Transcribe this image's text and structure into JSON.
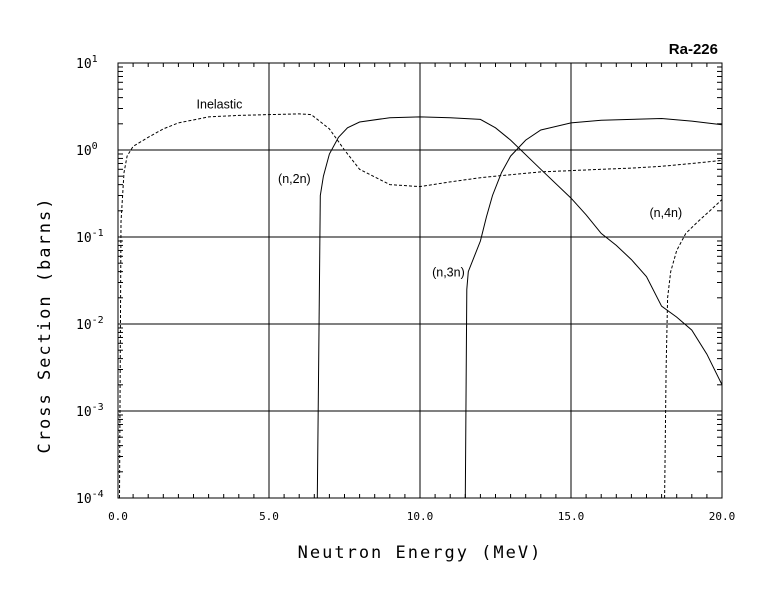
{
  "chart_data": {
    "type": "line",
    "title": "Ra-226",
    "xlabel": "Neutron Energy (MeV)",
    "ylabel": "Cross Section (barns)",
    "xlim": [
      0,
      20
    ],
    "ylim": [
      0.0001,
      10
    ],
    "yscale": "log",
    "grid": true,
    "x_ticks": [
      {
        "value": 0,
        "label": "0.0"
      },
      {
        "value": 5,
        "label": "5.0"
      },
      {
        "value": 10,
        "label": "10.0"
      },
      {
        "value": 15,
        "label": "15.0"
      },
      {
        "value": 20,
        "label": "20.0"
      }
    ],
    "y_ticks": [
      {
        "exp": -4,
        "base": "10",
        "sup": "-4"
      },
      {
        "exp": -3,
        "base": "10",
        "sup": "-3"
      },
      {
        "exp": -2,
        "base": "10",
        "sup": "-2"
      },
      {
        "exp": -1,
        "base": "10",
        "sup": "-1"
      },
      {
        "exp": 0,
        "base": "10",
        "sup": "0"
      },
      {
        "exp": 1,
        "base": "10",
        "sup": "1"
      }
    ],
    "series": [
      {
        "name": "Inelastic",
        "style": "dashed",
        "x": [
          0.05,
          0.1,
          0.2,
          0.3,
          0.5,
          1.0,
          1.5,
          2.0,
          3.0,
          4.0,
          5.0,
          6.0,
          6.4,
          7.0,
          7.5,
          8.0,
          9.0,
          10.0,
          11.0,
          12.0,
          13.0,
          14.0,
          15.0,
          16.0,
          17.0,
          18.0,
          19.0,
          20.0
        ],
        "y": [
          0.0001,
          0.15,
          0.55,
          0.85,
          1.1,
          1.4,
          1.75,
          2.05,
          2.4,
          2.5,
          2.55,
          2.6,
          2.55,
          1.75,
          1.0,
          0.6,
          0.4,
          0.38,
          0.43,
          0.48,
          0.52,
          0.56,
          0.58,
          0.6,
          0.62,
          0.65,
          0.7,
          0.76
        ]
      },
      {
        "name": "(n,2n)",
        "style": "solid",
        "x": [
          6.6,
          6.65,
          6.7,
          6.8,
          7.0,
          7.3,
          7.6,
          8.0,
          9.0,
          10.0,
          11.0,
          12.0,
          12.5,
          13.0,
          14.0,
          15.0,
          15.5,
          16.0,
          16.5,
          17.0,
          17.5,
          18.0,
          18.5,
          19.0,
          19.5,
          20.0
        ],
        "y": [
          0.0001,
          0.005,
          0.3,
          0.5,
          0.9,
          1.4,
          1.8,
          2.1,
          2.35,
          2.4,
          2.35,
          2.25,
          1.8,
          1.3,
          0.6,
          0.28,
          0.18,
          0.11,
          0.08,
          0.055,
          0.035,
          0.016,
          0.012,
          0.0085,
          0.0045,
          0.002
        ]
      },
      {
        "name": "(n,3n)",
        "style": "solid",
        "x": [
          11.5,
          11.55,
          11.6,
          12.0,
          12.2,
          12.4,
          12.7,
          13.0,
          13.5,
          14.0,
          15.0,
          16.0,
          17.0,
          18.0,
          19.0,
          20.0
        ],
        "y": [
          0.0001,
          0.025,
          0.04,
          0.09,
          0.17,
          0.3,
          0.55,
          0.85,
          1.3,
          1.7,
          2.05,
          2.2,
          2.25,
          2.3,
          2.15,
          1.95
        ]
      },
      {
        "name": "(n,4n)",
        "style": "dashed",
        "x": [
          18.1,
          18.15,
          18.2,
          18.3,
          18.5,
          18.8,
          19.2,
          19.6,
          20.0
        ],
        "y": [
          0.0001,
          0.003,
          0.02,
          0.04,
          0.07,
          0.11,
          0.15,
          0.2,
          0.27
        ]
      }
    ],
    "annotations": [
      {
        "text": "Inelastic",
        "x": 2.6,
        "y": 3.0
      },
      {
        "text": "(n,2n)",
        "x": 5.3,
        "y": 0.42
      },
      {
        "text": "(n,3n)",
        "x": 10.4,
        "y": 0.035
      },
      {
        "text": "(n,4n)",
        "x": 17.6,
        "y": 0.17
      }
    ]
  }
}
